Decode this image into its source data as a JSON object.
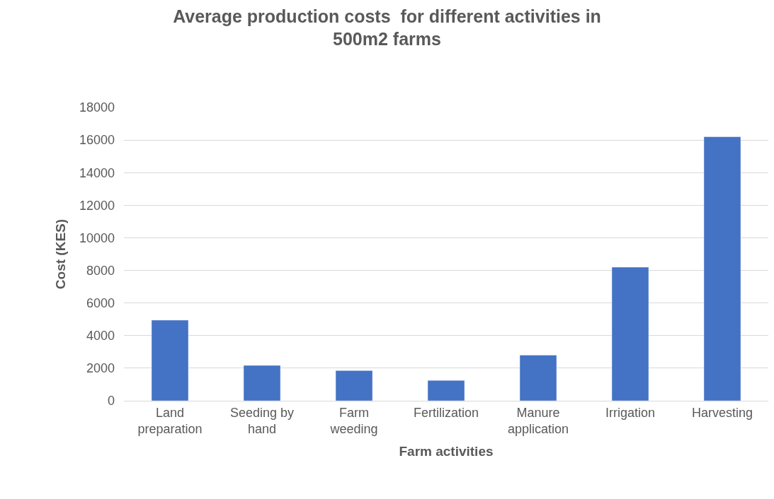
{
  "chart_data": {
    "type": "bar",
    "title": "Average production costs  for different activities in 500m2 farms",
    "xlabel": "Farm activities",
    "ylabel": "Cost (KES)",
    "categories": [
      "Land preparation",
      "Seeding by hand",
      "Farm weeding",
      "Fertilization",
      "Manure application",
      "Irrigation",
      "Harvesting"
    ],
    "values": [
      4950,
      2170,
      1850,
      1250,
      2800,
      8200,
      16200
    ],
    "color": "#4472c4",
    "ylim": [
      0,
      18000
    ],
    "yticks": [
      0,
      2000,
      4000,
      6000,
      8000,
      10000,
      12000,
      14000,
      16000,
      18000
    ],
    "grid": "y",
    "legend": false
  }
}
